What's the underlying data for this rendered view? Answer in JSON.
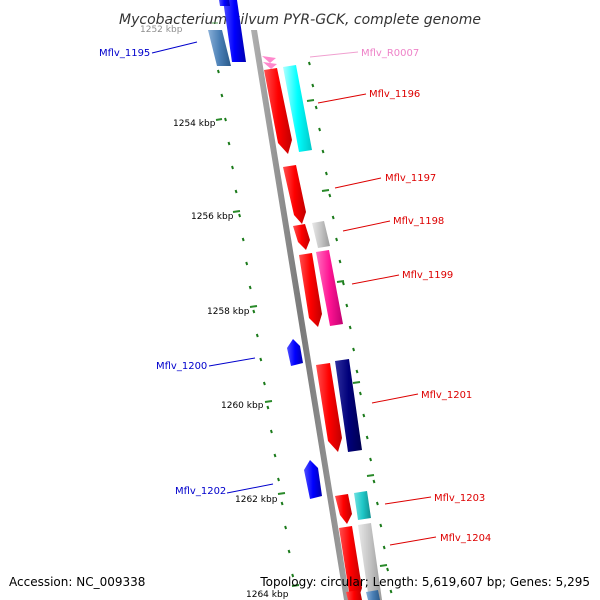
{
  "title": "Mycobacterium gilvum PYR-GCK, complete genome",
  "accession": "Accession: NC_009338",
  "summary": "Topology: circular; Length: 5,619,607 bp; Genes: 5,295",
  "ticks": [
    {
      "label": "1252 kbp",
      "faded": true
    },
    {
      "label": "1254 kbp"
    },
    {
      "label": "1256 kbp"
    },
    {
      "label": "1258 kbp"
    },
    {
      "label": "1260 kbp"
    },
    {
      "label": "1262 kbp"
    },
    {
      "label": "1264 kbp"
    }
  ],
  "genes": [
    {
      "label": "Mflv_1195",
      "color": "#0000cc"
    },
    {
      "label": "Mflv_R0007",
      "color": "#ee82c8"
    },
    {
      "label": "Mflv_1196",
      "color": "#dd0000"
    },
    {
      "label": "Mflv_1197",
      "color": "#dd0000"
    },
    {
      "label": "Mflv_1198",
      "color": "#dd0000"
    },
    {
      "label": "Mflv_1199",
      "color": "#dd0000"
    },
    {
      "label": "Mflv_1200",
      "color": "#0000cc"
    },
    {
      "label": "Mflv_1201",
      "color": "#dd0000"
    },
    {
      "label": "Mflv_1202",
      "color": "#0000cc"
    },
    {
      "label": "Mflv_1203",
      "color": "#dd0000"
    },
    {
      "label": "Mflv_1204",
      "color": "#dd0000"
    }
  ],
  "colors": {
    "backbone": "#8c8c8c",
    "cds": "#ff0000",
    "minus_cds": "#0000ff",
    "cyan": "#00ffff",
    "teal": "#20c8c8",
    "gray": "#bdbdbd",
    "magenta": "#ff1493",
    "navy": "#00007a",
    "steel": "#4a7fb5",
    "rna": "#ff88cc",
    "dots": "#1a7a1a"
  }
}
